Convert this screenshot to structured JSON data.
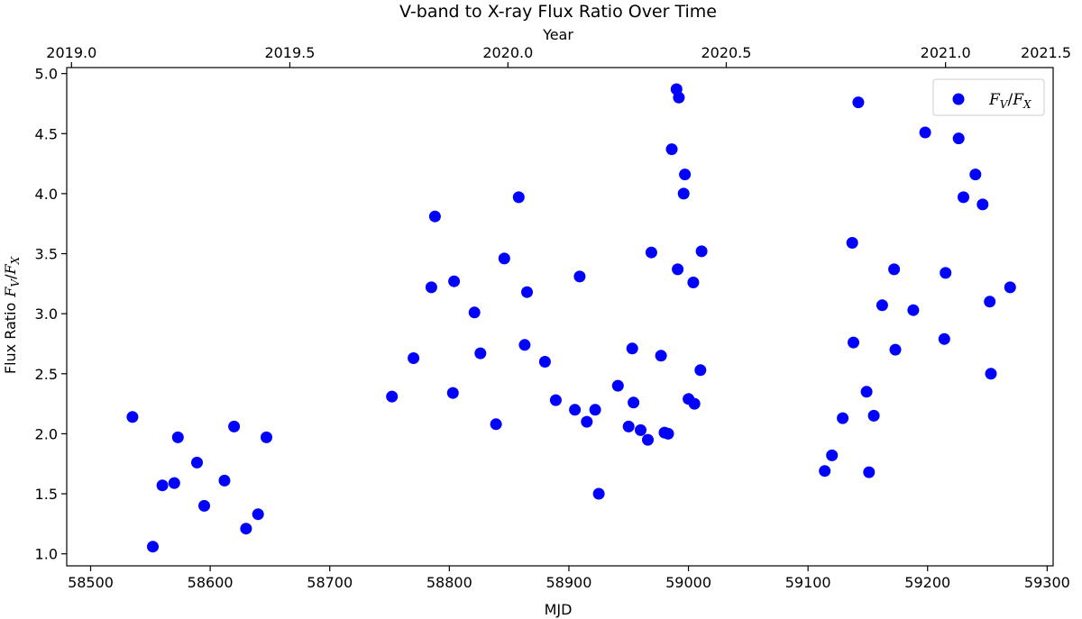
{
  "chart_data": {
    "type": "scatter",
    "title": "V-band to X-ray Flux Ratio Over Time",
    "xlabel": "MJD",
    "ylabel": "Flux Ratio",
    "ylabel_math": "F_V/F_X",
    "top_xlabel": "Year",
    "xlim": [
      58480,
      59305
    ],
    "ylim": [
      0.9,
      5.05
    ],
    "x_ticks": [
      "58500",
      "58600",
      "58700",
      "58800",
      "58900",
      "59000",
      "59100",
      "59200",
      "59300"
    ],
    "x_tick_values": [
      58500,
      58600,
      58700,
      58800,
      58900,
      59000,
      59100,
      59200,
      59300
    ],
    "y_ticks": [
      "1.0",
      "1.5",
      "2.0",
      "2.5",
      "3.0",
      "3.5",
      "4.0",
      "4.5",
      "5.0"
    ],
    "y_tick_values": [
      1.0,
      1.5,
      2.0,
      2.5,
      3.0,
      3.5,
      4.0,
      4.5,
      5.0
    ],
    "top_ticks": [
      "2019.0",
      "2019.5",
      "2020.0",
      "2020.5",
      "2021.0",
      "2021.5"
    ],
    "top_tick_mjd": [
      58484,
      58666.6,
      58849,
      59031.6,
      59215,
      59397.6
    ],
    "grid": false,
    "legend_position": "top-right",
    "series": [
      {
        "name": "F_V/F_X",
        "color": "#0000ff",
        "x": [
          58535,
          58552,
          58560,
          58570,
          58573,
          58589,
          58595,
          58612,
          58620,
          58630,
          58640,
          58647,
          58752,
          58770,
          58785,
          58788,
          58803,
          58804,
          58821,
          58826,
          58839,
          58846,
          58858,
          58863,
          58865,
          58880,
          58889,
          58905,
          58909,
          58915,
          58922,
          58925,
          58941,
          58950,
          58953,
          58954,
          58960,
          58966,
          58969,
          58977,
          58980,
          58983,
          58986,
          58990,
          58991,
          58992,
          58996,
          58997,
          59000,
          59004,
          59005,
          59010,
          59011,
          59114,
          59120,
          59129,
          59137,
          59138,
          59142,
          59149,
          59151,
          59155,
          59162,
          59172,
          59173,
          59188,
          59198,
          59214,
          59215,
          59226,
          59230,
          59240,
          59246,
          59252,
          59253,
          59269
        ],
        "y": [
          2.14,
          1.06,
          1.57,
          1.59,
          1.97,
          1.76,
          1.4,
          1.61,
          2.06,
          1.21,
          1.33,
          1.97,
          2.31,
          2.63,
          3.22,
          3.81,
          2.34,
          3.27,
          3.01,
          2.67,
          2.08,
          3.46,
          3.97,
          2.74,
          3.18,
          2.6,
          2.28,
          2.2,
          3.31,
          2.1,
          2.2,
          1.5,
          2.4,
          2.06,
          2.71,
          2.26,
          2.03,
          1.95,
          3.51,
          2.65,
          2.01,
          2.0,
          4.37,
          4.87,
          3.37,
          4.8,
          4.0,
          4.16,
          2.29,
          3.26,
          2.25,
          2.53,
          3.52,
          1.69,
          1.82,
          2.13,
          3.59,
          2.76,
          4.76,
          2.35,
          1.68,
          2.15,
          3.07,
          3.37,
          2.7,
          3.03,
          4.51,
          2.79,
          3.34,
          4.46,
          3.97,
          4.16,
          3.91,
          3.1,
          2.5,
          3.22
        ]
      }
    ]
  }
}
